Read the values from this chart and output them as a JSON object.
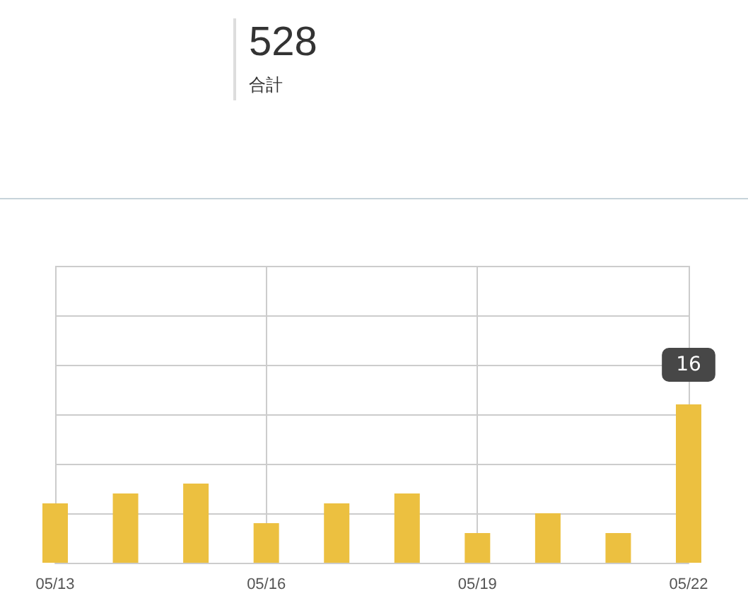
{
  "chart_data": {
    "type": "bar",
    "annotations": [
      "528",
      "合計"
    ],
    "categories": [
      "05/13",
      null,
      null,
      "05/16",
      null,
      null,
      "05/19",
      null,
      null,
      "05/22"
    ],
    "values": [
      6,
      7,
      8,
      4,
      6,
      7,
      3,
      5,
      3,
      16
    ],
    "color": "#ecc040",
    "value_labels": [
      null,
      null,
      null,
      null,
      null,
      null,
      null,
      null,
      null,
      "16"
    ],
    "ylim": [
      0,
      30
    ],
    "yticks": [
      {
        "value": 0,
        "label": null
      },
      {
        "value": 5,
        "label": null
      },
      {
        "value": 10,
        "label": null
      },
      {
        "value": 15,
        "label": null
      },
      {
        "value": 20,
        "label": null
      },
      {
        "value": 25,
        "label": null
      },
      {
        "value": 30,
        "label": null
      }
    ],
    "tick_labels": "x",
    "grid": true
  }
}
